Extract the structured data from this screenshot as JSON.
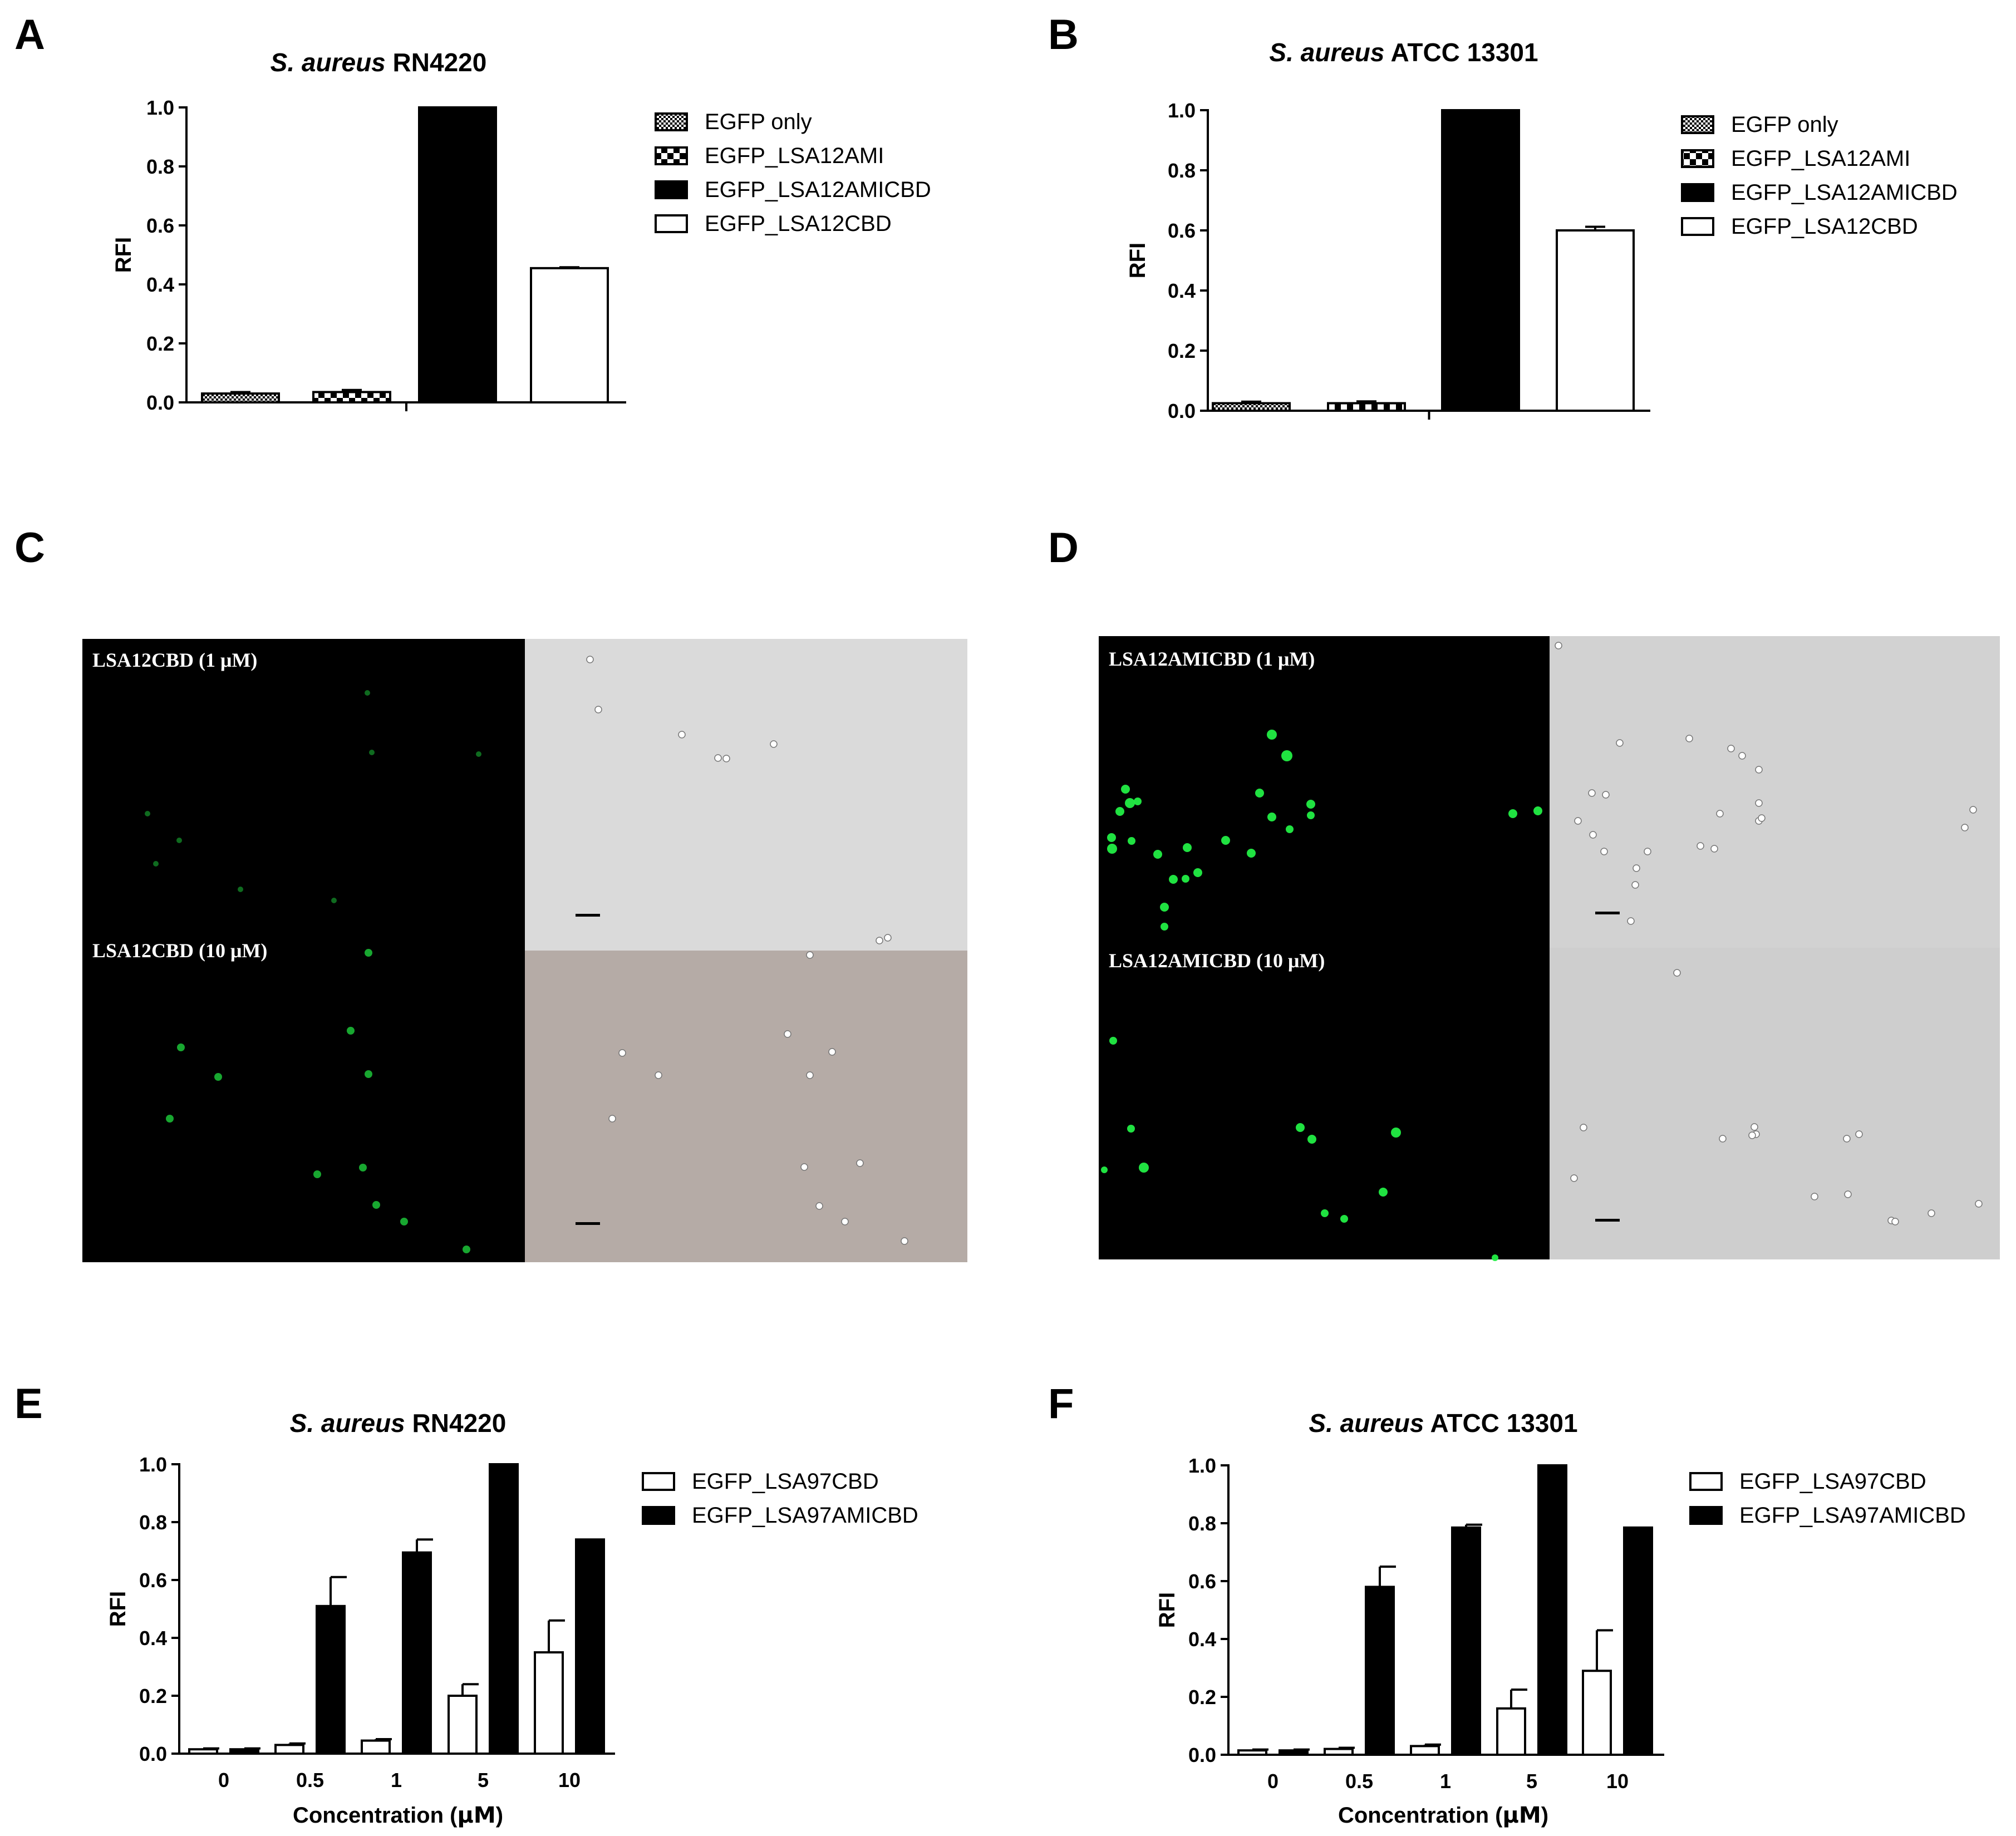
{
  "colors": {
    "bar_black": "#000000",
    "bar_white": "#ffffff",
    "cell_green": "#22ee44",
    "fluor_bg": "#000000",
    "brightfield_bg_1": "#dadada",
    "brightfield_bg_2": "#b5aba6",
    "brightfield_bg_3": "#d2d2d2",
    "brightfield_bg_4": "#cecece"
  },
  "chart_data": [
    {
      "panel": "A",
      "type": "bar",
      "title_italic": "S. aureus",
      "title_rest": " RN4220",
      "ylabel": "RFI",
      "xlabel": "",
      "ylim": [
        0,
        1.0
      ],
      "yticks": [
        "0.0",
        "0.2",
        "0.4",
        "0.6",
        "0.8",
        "1.0"
      ],
      "grid": false,
      "legend_position": "right",
      "series": [
        {
          "name": "EGFP only",
          "fill": "dots",
          "value": 0.03,
          "error": 0.005
        },
        {
          "name": "EGFP_LSA12AMI",
          "fill": "checker",
          "value": 0.035,
          "error": 0.007
        },
        {
          "name": "EGFP_LSA12AMICBD",
          "fill": "black",
          "value": 1.0,
          "error": 0
        },
        {
          "name": "EGFP_LSA12CBD",
          "fill": "white",
          "value": 0.455,
          "error": 0.003
        }
      ]
    },
    {
      "panel": "B",
      "type": "bar",
      "title_italic": "S. aureus",
      "title_rest": " ATCC 13301",
      "ylabel": "RFI",
      "xlabel": "",
      "ylim": [
        0,
        1.0
      ],
      "yticks": [
        "0.0",
        "0.2",
        "0.4",
        "0.6",
        "0.8",
        "1.0"
      ],
      "grid": false,
      "legend_position": "right",
      "series": [
        {
          "name": "EGFP only",
          "fill": "dots",
          "value": 0.025,
          "error": 0.005
        },
        {
          "name": "EGFP_LSA12AMI",
          "fill": "checker",
          "value": 0.025,
          "error": 0.006
        },
        {
          "name": "EGFP_LSA12AMICBD",
          "fill": "black",
          "value": 1.0,
          "error": 0
        },
        {
          "name": "EGFP_LSA12CBD",
          "fill": "white",
          "value": 0.6,
          "error": 0.012
        }
      ]
    },
    {
      "panel": "E",
      "type": "bar",
      "title_italic": "S. aureus",
      "title_rest": " RN4220",
      "ylabel": "RFI",
      "xlabel_pre": "Concentration (",
      "xlabel_unit": "μM",
      "xlabel_post": ")",
      "ylim": [
        0,
        1.0
      ],
      "yticks": [
        "0.0",
        "0.2",
        "0.4",
        "0.6",
        "0.8",
        "1.0"
      ],
      "grid": false,
      "legend_position": "right",
      "categories": [
        "0",
        "0.5",
        "1",
        "5",
        "10"
      ],
      "series": [
        {
          "name": "EGFP_LSA97CBD",
          "fill": "white",
          "values": [
            0.015,
            0.03,
            0.045,
            0.2,
            0.35
          ],
          "errors": [
            0.003,
            0.005,
            0.005,
            0.04,
            0.11
          ]
        },
        {
          "name": "EGFP_LSA97AMICBD",
          "fill": "black",
          "values": [
            0.015,
            0.51,
            0.695,
            1.0,
            0.74
          ],
          "errors": [
            0.003,
            0.1,
            0.045,
            0,
            0
          ]
        }
      ]
    },
    {
      "panel": "F",
      "type": "bar",
      "title_italic": "S. aureus",
      "title_rest": " ATCC 13301",
      "ylabel": "RFI",
      "xlabel_pre": "Concentration (",
      "xlabel_unit": "μM",
      "xlabel_post": ")",
      "ylim": [
        0,
        1.0
      ],
      "yticks": [
        "0.0",
        "0.2",
        "0.4",
        "0.6",
        "0.8",
        "1.0"
      ],
      "grid": false,
      "legend_position": "right",
      "categories": [
        "0",
        "0.5",
        "1",
        "5",
        "10"
      ],
      "series": [
        {
          "name": "EGFP_LSA97CBD",
          "fill": "white",
          "values": [
            0.015,
            0.02,
            0.03,
            0.16,
            0.29
          ],
          "errors": [
            0.003,
            0.004,
            0.005,
            0.065,
            0.14
          ]
        },
        {
          "name": "EGFP_LSA97AMICBD",
          "fill": "black",
          "values": [
            0.015,
            0.58,
            0.785,
            1.0,
            0.785
          ],
          "errors": [
            0.003,
            0.07,
            0.01,
            0,
            0
          ]
        }
      ]
    }
  ],
  "micrographs": [
    {
      "panel": "C",
      "rows": [
        {
          "label": "LSA12CBD (1 μM)",
          "fluor_brightness": "dim"
        },
        {
          "label": "LSA12CBD (10 μM)",
          "fluor_brightness": "moderate"
        }
      ]
    },
    {
      "panel": "D",
      "rows": [
        {
          "label": "LSA12AMICBD (1 μM)",
          "fluor_brightness": "bright"
        },
        {
          "label": "LSA12AMICBD (10 μM)",
          "fluor_brightness": "bright"
        }
      ]
    }
  ]
}
